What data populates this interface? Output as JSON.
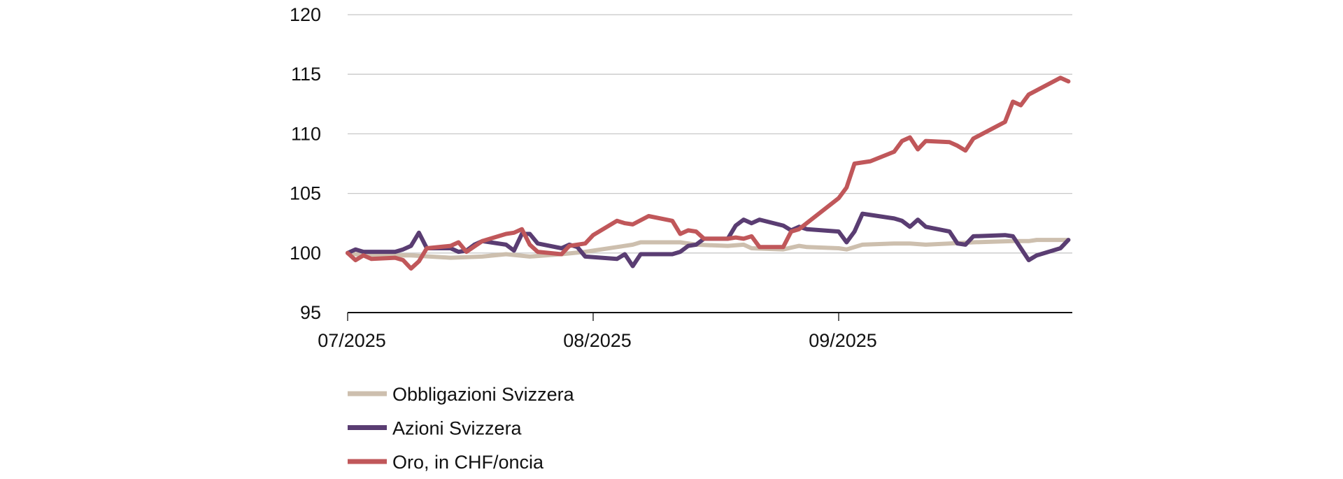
{
  "chart_data": {
    "type": "line",
    "title": "",
    "xlabel": "",
    "ylabel": "",
    "ylim": [
      95,
      120
    ],
    "yticks": [
      "95",
      "100",
      "105",
      "110",
      "115",
      "120"
    ],
    "xlim": [
      "2025-07-01",
      "2025-09-30"
    ],
    "xticks": [
      {
        "date": "2025-07-01",
        "label": "07/2025"
      },
      {
        "date": "2025-08-01",
        "label": "08/2025"
      },
      {
        "date": "2025-09-01",
        "label": "09/2025"
      }
    ],
    "grid": "horizontal",
    "legend_position": "bottom-left",
    "series": [
      {
        "name": "Obbligazioni Svizzera",
        "color": "#cdbfae",
        "points": [
          [
            "2025-07-01",
            100.0
          ],
          [
            "2025-07-03",
            99.8
          ],
          [
            "2025-07-09",
            99.8
          ],
          [
            "2025-07-14",
            99.6
          ],
          [
            "2025-07-18",
            99.7
          ],
          [
            "2025-07-21",
            99.9
          ],
          [
            "2025-07-24",
            99.7
          ],
          [
            "2025-07-28",
            99.9
          ],
          [
            "2025-07-31",
            100.1
          ],
          [
            "2025-08-04",
            100.5
          ],
          [
            "2025-08-06",
            100.7
          ],
          [
            "2025-08-07",
            100.9
          ],
          [
            "2025-08-12",
            100.9
          ],
          [
            "2025-08-14",
            100.7
          ],
          [
            "2025-08-18",
            100.6
          ],
          [
            "2025-08-20",
            100.7
          ],
          [
            "2025-08-21",
            100.4
          ],
          [
            "2025-08-25",
            100.3
          ],
          [
            "2025-08-27",
            100.6
          ],
          [
            "2025-08-28",
            100.5
          ],
          [
            "2025-09-01",
            100.4
          ],
          [
            "2025-09-02",
            100.3
          ],
          [
            "2025-09-04",
            100.7
          ],
          [
            "2025-09-08",
            100.8
          ],
          [
            "2025-09-10",
            100.8
          ],
          [
            "2025-09-12",
            100.7
          ],
          [
            "2025-09-15",
            100.8
          ],
          [
            "2025-09-18",
            100.9
          ],
          [
            "2025-09-23",
            101.0
          ],
          [
            "2025-09-25",
            101.0
          ],
          [
            "2025-09-26",
            101.1
          ],
          [
            "2025-09-30",
            101.1
          ]
        ]
      },
      {
        "name": "Azioni Svizzera",
        "color": "#5a3d72",
        "points": [
          [
            "2025-07-01",
            100.0
          ],
          [
            "2025-07-02",
            100.3
          ],
          [
            "2025-07-03",
            100.1
          ],
          [
            "2025-07-07",
            100.1
          ],
          [
            "2025-07-08",
            100.3
          ],
          [
            "2025-07-09",
            100.6
          ],
          [
            "2025-07-10",
            101.7
          ],
          [
            "2025-07-11",
            100.4
          ],
          [
            "2025-07-14",
            100.4
          ],
          [
            "2025-07-15",
            100.1
          ],
          [
            "2025-07-16",
            100.2
          ],
          [
            "2025-07-17",
            100.7
          ],
          [
            "2025-07-18",
            101.0
          ],
          [
            "2025-07-21",
            100.7
          ],
          [
            "2025-07-22",
            100.2
          ],
          [
            "2025-07-23",
            101.6
          ],
          [
            "2025-07-24",
            101.6
          ],
          [
            "2025-07-25",
            100.8
          ],
          [
            "2025-07-28",
            100.4
          ],
          [
            "2025-07-29",
            100.7
          ],
          [
            "2025-07-30",
            100.5
          ],
          [
            "2025-07-31",
            99.7
          ],
          [
            "2025-08-04",
            99.5
          ],
          [
            "2025-08-05",
            99.9
          ],
          [
            "2025-08-06",
            98.9
          ],
          [
            "2025-08-07",
            99.9
          ],
          [
            "2025-08-11",
            99.9
          ],
          [
            "2025-08-12",
            100.1
          ],
          [
            "2025-08-13",
            100.6
          ],
          [
            "2025-08-14",
            100.7
          ],
          [
            "2025-08-15",
            101.2
          ],
          [
            "2025-08-18",
            101.2
          ],
          [
            "2025-08-19",
            102.3
          ],
          [
            "2025-08-20",
            102.8
          ],
          [
            "2025-08-21",
            102.5
          ],
          [
            "2025-08-22",
            102.8
          ],
          [
            "2025-08-25",
            102.3
          ],
          [
            "2025-08-26",
            101.9
          ],
          [
            "2025-08-27",
            102.2
          ],
          [
            "2025-08-28",
            102.0
          ],
          [
            "2025-09-01",
            101.8
          ],
          [
            "2025-09-02",
            100.9
          ],
          [
            "2025-09-03",
            101.8
          ],
          [
            "2025-09-04",
            103.3
          ],
          [
            "2025-09-08",
            102.9
          ],
          [
            "2025-09-09",
            102.7
          ],
          [
            "2025-09-10",
            102.2
          ],
          [
            "2025-09-11",
            102.8
          ],
          [
            "2025-09-12",
            102.2
          ],
          [
            "2025-09-15",
            101.8
          ],
          [
            "2025-09-16",
            100.8
          ],
          [
            "2025-09-17",
            100.7
          ],
          [
            "2025-09-18",
            101.4
          ],
          [
            "2025-09-22",
            101.5
          ],
          [
            "2025-09-23",
            101.4
          ],
          [
            "2025-09-25",
            99.4
          ],
          [
            "2025-09-26",
            99.8
          ],
          [
            "2025-09-29",
            100.4
          ],
          [
            "2025-09-30",
            101.1
          ]
        ]
      },
      {
        "name": "Oro, in CHF/oncia",
        "color": "#c0575a",
        "points": [
          [
            "2025-07-01",
            100.0
          ],
          [
            "2025-07-02",
            99.4
          ],
          [
            "2025-07-03",
            99.8
          ],
          [
            "2025-07-04",
            99.5
          ],
          [
            "2025-07-07",
            99.6
          ],
          [
            "2025-07-08",
            99.4
          ],
          [
            "2025-07-09",
            98.7
          ],
          [
            "2025-07-10",
            99.3
          ],
          [
            "2025-07-11",
            100.4
          ],
          [
            "2025-07-14",
            100.6
          ],
          [
            "2025-07-15",
            100.9
          ],
          [
            "2025-07-16",
            100.1
          ],
          [
            "2025-07-18",
            101.0
          ],
          [
            "2025-07-21",
            101.6
          ],
          [
            "2025-07-22",
            101.7
          ],
          [
            "2025-07-23",
            102.0
          ],
          [
            "2025-07-24",
            100.7
          ],
          [
            "2025-07-25",
            100.1
          ],
          [
            "2025-07-28",
            99.9
          ],
          [
            "2025-07-29",
            100.6
          ],
          [
            "2025-07-31",
            100.8
          ],
          [
            "2025-08-01",
            101.5
          ],
          [
            "2025-08-04",
            102.7
          ],
          [
            "2025-08-05",
            102.5
          ],
          [
            "2025-08-06",
            102.4
          ],
          [
            "2025-08-08",
            103.1
          ],
          [
            "2025-08-11",
            102.7
          ],
          [
            "2025-08-12",
            101.6
          ],
          [
            "2025-08-13",
            101.9
          ],
          [
            "2025-08-14",
            101.8
          ],
          [
            "2025-08-15",
            101.2
          ],
          [
            "2025-08-18",
            101.2
          ],
          [
            "2025-08-19",
            101.3
          ],
          [
            "2025-08-20",
            101.2
          ],
          [
            "2025-08-21",
            101.4
          ],
          [
            "2025-08-22",
            100.5
          ],
          [
            "2025-08-25",
            100.5
          ],
          [
            "2025-08-26",
            101.8
          ],
          [
            "2025-08-27",
            102.0
          ],
          [
            "2025-09-01",
            104.6
          ],
          [
            "2025-09-02",
            105.5
          ],
          [
            "2025-09-03",
            107.5
          ],
          [
            "2025-09-05",
            107.7
          ],
          [
            "2025-09-08",
            108.5
          ],
          [
            "2025-09-09",
            109.4
          ],
          [
            "2025-09-10",
            109.7
          ],
          [
            "2025-09-11",
            108.7
          ],
          [
            "2025-09-12",
            109.4
          ],
          [
            "2025-09-15",
            109.3
          ],
          [
            "2025-09-16",
            109.0
          ],
          [
            "2025-09-17",
            108.6
          ],
          [
            "2025-09-18",
            109.6
          ],
          [
            "2025-09-22",
            111.0
          ],
          [
            "2025-09-23",
            112.7
          ],
          [
            "2025-09-24",
            112.4
          ],
          [
            "2025-09-25",
            113.3
          ],
          [
            "2025-09-29",
            114.7
          ],
          [
            "2025-09-30",
            114.4
          ]
        ]
      }
    ]
  }
}
